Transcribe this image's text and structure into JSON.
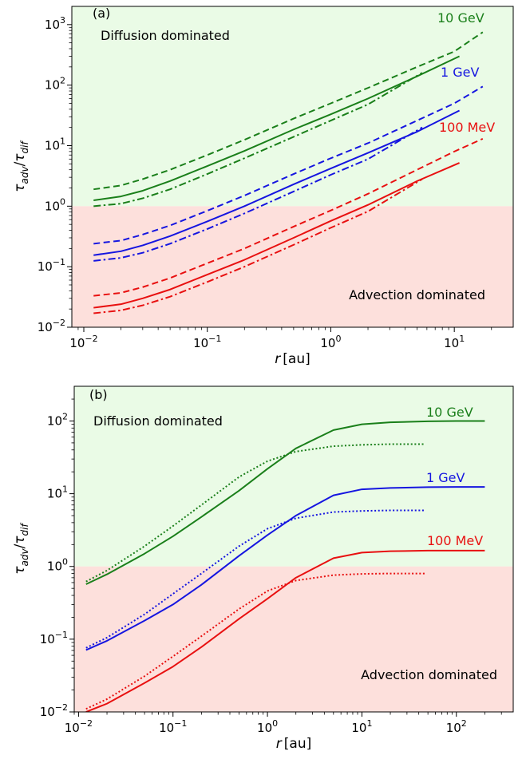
{
  "chart_data": [
    {
      "type": "line",
      "panel_label": "(a)",
      "xlabel_var": "r",
      "xlabel_unit": "[au]",
      "ylabel_main": "τ",
      "ylabel_sub1": "adv",
      "ylabel_sub2": "dif",
      "x_scale": "log",
      "y_scale": "log",
      "xlim": [
        0.008,
        30
      ],
      "ylim": [
        0.01,
        2000
      ],
      "x_ticks": [
        {
          "value": 0.01,
          "base": "10",
          "exp": "−2"
        },
        {
          "value": 0.1,
          "base": "10",
          "exp": "−1"
        },
        {
          "value": 1,
          "base": "10",
          "exp": "0"
        },
        {
          "value": 10,
          "base": "10",
          "exp": "1"
        }
      ],
      "y_ticks": [
        {
          "value": 0.01,
          "base": "10",
          "exp": "−2"
        },
        {
          "value": 0.1,
          "base": "10",
          "exp": "−1"
        },
        {
          "value": 1,
          "base": "10",
          "exp": "0"
        },
        {
          "value": 10,
          "base": "10",
          "exp": "1"
        },
        {
          "value": 100,
          "base": "10",
          "exp": "2"
        },
        {
          "value": 1000,
          "base": "10",
          "exp": "3"
        }
      ],
      "regions": [
        {
          "label": "Diffusion dominated",
          "y_from": 1,
          "y_to": 2000,
          "color": "#eafbe6"
        },
        {
          "label": "Advection dominated",
          "y_from": 0.01,
          "y_to": 1,
          "color": "#fde0dc"
        }
      ],
      "energy_labels": [
        {
          "text": "10 GeV",
          "color": "#1a7f1a"
        },
        {
          "text": "1 GeV",
          "color": "#1515e0"
        },
        {
          "text": "100 MeV",
          "color": "#e81010"
        }
      ],
      "series": [
        {
          "energy": "10 GeV",
          "style": "dashed",
          "color": "#1a7f1a",
          "x": [
            0.012,
            0.02,
            0.03,
            0.05,
            0.1,
            0.2,
            0.5,
            1,
            2,
            5,
            10,
            17
          ],
          "y": [
            1.9,
            2.2,
            2.8,
            4.0,
            7.0,
            12.5,
            28,
            50,
            90,
            200,
            360,
            750
          ]
        },
        {
          "energy": "10 GeV",
          "style": "solid",
          "color": "#1a7f1a",
          "x": [
            0.012,
            0.02,
            0.03,
            0.05,
            0.1,
            0.2,
            0.5,
            1,
            2,
            5,
            11
          ],
          "y": [
            1.25,
            1.45,
            1.8,
            2.6,
            4.6,
            8.2,
            18.5,
            33,
            60,
            140,
            300
          ]
        },
        {
          "energy": "10 GeV",
          "style": "dashdot",
          "color": "#1a7f1a",
          "x": [
            0.012,
            0.02,
            0.03,
            0.05,
            0.1,
            0.2,
            0.5,
            1,
            2,
            5.5
          ],
          "y": [
            1.0,
            1.1,
            1.35,
            1.9,
            3.4,
            6.2,
            14,
            26,
            48,
            160
          ]
        },
        {
          "energy": "1 GeV",
          "style": "dashed",
          "color": "#1515e0",
          "x": [
            0.012,
            0.02,
            0.03,
            0.05,
            0.1,
            0.2,
            0.5,
            1,
            2,
            5,
            10,
            17
          ],
          "y": [
            0.24,
            0.27,
            0.34,
            0.48,
            0.84,
            1.5,
            3.4,
            6.2,
            11,
            26,
            50,
            95
          ]
        },
        {
          "energy": "1 GeV",
          "style": "solid",
          "color": "#1515e0",
          "x": [
            0.012,
            0.02,
            0.03,
            0.05,
            0.1,
            0.2,
            0.5,
            1,
            2,
            5,
            11
          ],
          "y": [
            0.155,
            0.18,
            0.225,
            0.32,
            0.56,
            1.0,
            2.3,
            4.2,
            7.6,
            17,
            38
          ]
        },
        {
          "energy": "1 GeV",
          "style": "dashdot",
          "color": "#1515e0",
          "x": [
            0.012,
            0.02,
            0.03,
            0.05,
            0.1,
            0.2,
            0.5,
            1,
            2,
            5.5
          ],
          "y": [
            0.125,
            0.14,
            0.17,
            0.24,
            0.42,
            0.76,
            1.75,
            3.3,
            6.0,
            20
          ]
        },
        {
          "energy": "100 MeV",
          "style": "dashed",
          "color": "#e81010",
          "x": [
            0.012,
            0.02,
            0.03,
            0.05,
            0.1,
            0.2,
            0.5,
            1,
            2,
            5,
            10,
            17
          ],
          "y": [
            0.033,
            0.037,
            0.046,
            0.065,
            0.114,
            0.2,
            0.46,
            0.85,
            1.6,
            4.0,
            8.0,
            13
          ]
        },
        {
          "energy": "100 MeV",
          "style": "solid",
          "color": "#e81010",
          "x": [
            0.012,
            0.02,
            0.03,
            0.05,
            0.1,
            0.2,
            0.5,
            1,
            2,
            5,
            11
          ],
          "y": [
            0.021,
            0.024,
            0.03,
            0.042,
            0.074,
            0.13,
            0.3,
            0.57,
            1.05,
            2.6,
            5.2
          ]
        },
        {
          "energy": "100 MeV",
          "style": "dashdot",
          "color": "#e81010",
          "x": [
            0.012,
            0.02,
            0.03,
            0.05,
            0.1,
            0.2,
            0.5,
            1,
            2,
            5.5
          ],
          "y": [
            0.017,
            0.019,
            0.023,
            0.032,
            0.056,
            0.1,
            0.23,
            0.44,
            0.82,
            2.8
          ]
        }
      ]
    },
    {
      "type": "line",
      "panel_label": "(b)",
      "xlabel_var": "r",
      "xlabel_unit": "[au]",
      "ylabel_main": "τ",
      "ylabel_sub1": "adv",
      "ylabel_sub2": "dif",
      "x_scale": "log",
      "y_scale": "log",
      "xlim": [
        0.009,
        400
      ],
      "ylim": [
        0.01,
        300
      ],
      "x_ticks": [
        {
          "value": 0.01,
          "base": "10",
          "exp": "−2"
        },
        {
          "value": 0.1,
          "base": "10",
          "exp": "−1"
        },
        {
          "value": 1,
          "base": "10",
          "exp": "0"
        },
        {
          "value": 10,
          "base": "10",
          "exp": "1"
        },
        {
          "value": 100,
          "base": "10",
          "exp": "2"
        }
      ],
      "y_ticks": [
        {
          "value": 0.01,
          "base": "10",
          "exp": "−2"
        },
        {
          "value": 0.1,
          "base": "10",
          "exp": "−1"
        },
        {
          "value": 1,
          "base": "10",
          "exp": "0"
        },
        {
          "value": 10,
          "base": "10",
          "exp": "1"
        },
        {
          "value": 100,
          "base": "10",
          "exp": "2"
        }
      ],
      "regions": [
        {
          "label": "Diffusion dominated",
          "y_from": 1,
          "y_to": 300,
          "color": "#eafbe6"
        },
        {
          "label": "Advection dominated",
          "y_from": 0.01,
          "y_to": 1,
          "color": "#fde0dc"
        }
      ],
      "energy_labels": [
        {
          "text": "10 GeV",
          "color": "#1a7f1a"
        },
        {
          "text": "1 GeV",
          "color": "#1515e0"
        },
        {
          "text": "100 MeV",
          "color": "#e81010"
        }
      ],
      "series": [
        {
          "energy": "10 GeV",
          "style": "solid",
          "color": "#1a7f1a",
          "x": [
            0.012,
            0.02,
            0.05,
            0.1,
            0.2,
            0.5,
            1,
            2,
            5,
            10,
            20,
            50,
            100,
            200
          ],
          "y": [
            0.57,
            0.78,
            1.5,
            2.6,
            4.8,
            11,
            22,
            42,
            75,
            90,
            96,
            99,
            100,
            100
          ]
        },
        {
          "energy": "10 GeV",
          "style": "dotted",
          "color": "#1a7f1a",
          "x": [
            0.012,
            0.02,
            0.05,
            0.1,
            0.2,
            0.5,
            1,
            2,
            5,
            10,
            20,
            47
          ],
          "y": [
            0.62,
            0.88,
            1.9,
            3.6,
            7,
            17,
            28,
            38,
            45,
            47,
            48,
            48
          ]
        },
        {
          "energy": "1 GeV",
          "style": "solid",
          "color": "#1515e0",
          "x": [
            0.012,
            0.02,
            0.05,
            0.1,
            0.2,
            0.5,
            1,
            2,
            5,
            10,
            20,
            50,
            100,
            200
          ],
          "y": [
            0.071,
            0.095,
            0.18,
            0.3,
            0.56,
            1.4,
            2.7,
            5,
            9.5,
            11.5,
            12,
            12.3,
            12.4,
            12.4
          ]
        },
        {
          "energy": "1 GeV",
          "style": "dotted",
          "color": "#1515e0",
          "x": [
            0.012,
            0.02,
            0.05,
            0.1,
            0.2,
            0.5,
            1,
            2,
            5,
            10,
            20,
            47
          ],
          "y": [
            0.076,
            0.105,
            0.22,
            0.42,
            0.8,
            1.9,
            3.3,
            4.6,
            5.6,
            5.8,
            5.9,
            5.9
          ]
        },
        {
          "energy": "100 MeV",
          "style": "solid",
          "color": "#e81010",
          "x": [
            0.012,
            0.02,
            0.05,
            0.1,
            0.2,
            0.5,
            1,
            2,
            5,
            10,
            20,
            50,
            100,
            200
          ],
          "y": [
            0.01,
            0.013,
            0.025,
            0.042,
            0.078,
            0.19,
            0.36,
            0.7,
            1.3,
            1.55,
            1.62,
            1.65,
            1.65,
            1.65
          ]
        },
        {
          "energy": "100 MeV",
          "style": "dotted",
          "color": "#e81010",
          "x": [
            0.012,
            0.02,
            0.05,
            0.1,
            0.2,
            0.5,
            1,
            2,
            5,
            10,
            20,
            47
          ],
          "y": [
            0.011,
            0.015,
            0.031,
            0.058,
            0.11,
            0.26,
            0.46,
            0.64,
            0.76,
            0.79,
            0.8,
            0.8
          ]
        }
      ]
    }
  ]
}
